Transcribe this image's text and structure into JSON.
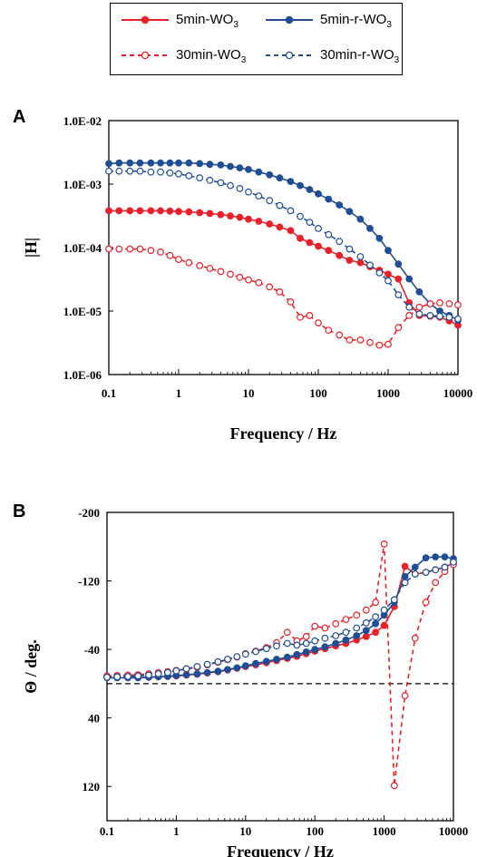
{
  "legend": {
    "items": [
      {
        "prefix": "5min-WO",
        "sub": "3",
        "color": "#e8212a",
        "dash": false,
        "filled": true
      },
      {
        "prefix": "5min-r-WO",
        "sub": "3",
        "color": "#1f4e96",
        "dash": false,
        "filled": true
      },
      {
        "prefix": "30min-WO",
        "sub": "3",
        "color": "#e8212a",
        "dash": true,
        "filled": false
      },
      {
        "prefix": "30min-r-WO",
        "sub": "3",
        "color": "#1f4e96",
        "dash": true,
        "filled": false
      }
    ]
  },
  "colors": {
    "red": "#e8212a",
    "blue": "#1f4e96"
  },
  "chart_data": [
    {
      "panel": "A",
      "type": "line",
      "xlabel": "Frequency / Hz",
      "ylabel": "|H|",
      "xscale": "log",
      "yscale": "log",
      "xlim": [
        0.1,
        10000
      ],
      "ylim": [
        1e-06,
        0.01
      ],
      "xticks": [
        "0.1",
        "1",
        "10",
        "100",
        "1000",
        "10000"
      ],
      "yticks": [
        "1.0E-06",
        "1.0E-05",
        "1.0E-04",
        "1.0E-03",
        "1.0E-02"
      ],
      "x": [
        0.1,
        0.14,
        0.2,
        0.28,
        0.4,
        0.55,
        0.75,
        1,
        1.4,
        2,
        2.8,
        4,
        5.5,
        7.5,
        10,
        14,
        20,
        28,
        40,
        55,
        75,
        100,
        140,
        200,
        280,
        400,
        550,
        750,
        1000,
        1400,
        2000,
        2800,
        4000,
        5500,
        7500,
        10000
      ],
      "series": [
        {
          "name": "5min-WO3",
          "style": "solid-filled",
          "color": "#e8212a",
          "values": [
            0.00038,
            0.00038,
            0.00038,
            0.00038,
            0.00038,
            0.00038,
            0.000375,
            0.00037,
            0.000365,
            0.000355,
            0.000345,
            0.00033,
            0.000315,
            0.0003,
            0.00028,
            0.00026,
            0.000235,
            0.00021,
            0.000185,
            0.00014,
            0.00012,
            0.000105,
            9e-05,
            7.5e-05,
            6.3e-05,
            5.8e-05,
            5e-05,
            4.4e-05,
            3.8e-05,
            3.2e-05,
            1.35e-05,
            8.5e-06,
            8.3e-06,
            8e-06,
            7e-06,
            6e-06
          ]
        },
        {
          "name": "5min-r-WO3",
          "style": "solid-filled",
          "color": "#1f4e96",
          "values": [
            0.0021,
            0.00215,
            0.00215,
            0.00215,
            0.00215,
            0.00215,
            0.00215,
            0.00215,
            0.00215,
            0.0021,
            0.00205,
            0.002,
            0.0019,
            0.0018,
            0.0017,
            0.00155,
            0.0014,
            0.00125,
            0.0011,
            0.00095,
            0.00082,
            0.0007,
            0.00058,
            0.00047,
            0.00037,
            0.00028,
            0.0002,
            0.00014,
            9e-05,
            5.5e-05,
            3.2e-05,
            2e-05,
            1.3e-05,
            1e-05,
            8.5e-06,
            7.2e-06
          ]
        },
        {
          "name": "30min-WO3",
          "style": "dashed-open",
          "color": "#e8212a",
          "values": [
            9.5e-05,
            9.5e-05,
            9.5e-05,
            9.5e-05,
            9e-05,
            8.5e-05,
            7.5e-05,
            6.5e-05,
            5.8e-05,
            5.2e-05,
            4.7e-05,
            4.2e-05,
            3.8e-05,
            3.4e-05,
            3.1e-05,
            2.8e-05,
            2.4e-05,
            2e-05,
            1.4e-05,
            8e-06,
            8.5e-06,
            6.5e-06,
            5e-06,
            4.2e-06,
            3.5e-06,
            3.5e-06,
            3.2e-06,
            2.9e-06,
            3e-06,
            5.5e-06,
            8.5e-06,
            1.15e-05,
            1.3e-05,
            1.35e-05,
            1.3e-05,
            1.25e-05
          ]
        },
        {
          "name": "30min-r-WO3",
          "style": "dashed-open",
          "color": "#1f4e96",
          "values": [
            0.0016,
            0.0016,
            0.0016,
            0.0016,
            0.00155,
            0.00155,
            0.0015,
            0.00145,
            0.00135,
            0.00125,
            0.00115,
            0.00105,
            0.00095,
            0.00085,
            0.00075,
            0.00065,
            0.00055,
            0.00046,
            0.00038,
            0.00031,
            0.00025,
            0.0002,
            0.00016,
            0.000125,
            9.5e-05,
            7.2e-05,
            5.3e-05,
            4e-05,
            3e-05,
            1.8e-05,
            1.15e-05,
            9e-06,
            8.5e-06,
            8.3e-06,
            8e-06,
            7.5e-06
          ]
        }
      ]
    },
    {
      "panel": "B",
      "type": "line",
      "xlabel": "Frequency / Hz",
      "ylabel": "Θ / deg.",
      "xscale": "log",
      "yreversed": true,
      "xlim": [
        0.1,
        10000
      ],
      "ylim": [
        160,
        -200
      ],
      "xticks": [
        "0.1",
        "1",
        "10",
        "100",
        "1000",
        "10000"
      ],
      "yticks": [
        "-200",
        "-120",
        "-40",
        "40",
        "120"
      ],
      "hline": 0,
      "x": [
        0.1,
        0.14,
        0.2,
        0.28,
        0.4,
        0.55,
        0.75,
        1,
        1.4,
        2,
        2.8,
        4,
        5.5,
        7.5,
        10,
        14,
        20,
        28,
        40,
        55,
        75,
        100,
        140,
        200,
        280,
        400,
        550,
        750,
        1000,
        1400,
        2000,
        2800,
        4000,
        5500,
        7500,
        10000
      ],
      "series": [
        {
          "name": "5min-WO3",
          "style": "solid-filled",
          "color": "#e8212a",
          "values": [
            -7,
            -7,
            -7,
            -7,
            -7.5,
            -8,
            -8.5,
            -9,
            -10,
            -11,
            -12.5,
            -14,
            -16,
            -18,
            -20,
            -22,
            -24.5,
            -27,
            -29.5,
            -32,
            -35,
            -38,
            -41,
            -44,
            -47,
            -51,
            -55,
            -60,
            -68,
            -90,
            -137,
            -128,
            -130,
            -133,
            -136,
            -141
          ]
        },
        {
          "name": "5min-r-WO3",
          "style": "solid-filled",
          "color": "#1f4e96",
          "values": [
            -7,
            -7,
            -7,
            -7,
            -7.5,
            -8,
            -8.5,
            -9.5,
            -10.5,
            -11.5,
            -13,
            -14.5,
            -16.5,
            -18.5,
            -21,
            -23.5,
            -26,
            -28.5,
            -31,
            -34,
            -37,
            -40,
            -43,
            -47,
            -51,
            -56,
            -62,
            -70,
            -80,
            -95,
            -125,
            -136,
            -147,
            -148,
            -148,
            -146
          ]
        },
        {
          "name": "30min-WO3",
          "style": "dashed-open",
          "color": "#e8212a",
          "values": [
            -9,
            -9.5,
            -10,
            -10.5,
            -11.5,
            -13,
            -14,
            -15.5,
            -17,
            -19,
            -22,
            -25,
            -28,
            -31,
            -35,
            -38,
            -42,
            -48,
            -60,
            -50,
            -55,
            -67,
            -65,
            -70,
            -75,
            -80,
            -86,
            -95,
            -163,
            119,
            14,
            -53,
            -95,
            -118,
            -131,
            -139
          ]
        },
        {
          "name": "30min-r-WO3",
          "style": "dashed-open",
          "color": "#1f4e96",
          "values": [
            -7.5,
            -8,
            -8.5,
            -9,
            -10,
            -11.5,
            -13,
            -15,
            -17.5,
            -20,
            -22.5,
            -25.5,
            -28.5,
            -31.5,
            -34.5,
            -37.5,
            -41,
            -44,
            -47,
            -45,
            -47,
            -50,
            -53,
            -56,
            -60,
            -65,
            -71,
            -78,
            -86,
            -98,
            -118,
            -128,
            -130,
            -133,
            -136,
            -142
          ]
        }
      ]
    }
  ]
}
